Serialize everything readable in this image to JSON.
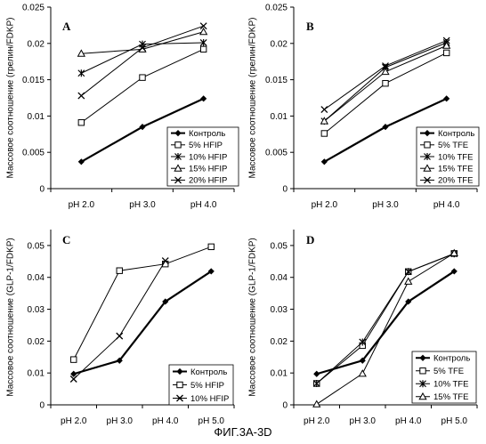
{
  "figure_caption": "ФИГ.3А-3D",
  "chart_data": [
    {
      "type": "line",
      "panel": "A",
      "ylabel": "Массовое соотношение (грелин/FDKP)",
      "categories": [
        "pH 2.0",
        "pH 3.0",
        "pH 4.0"
      ],
      "ylim": [
        0,
        0.025
      ],
      "yticks": [
        "0",
        "0.005",
        "0.01",
        "0.015",
        "0.02",
        "0.025"
      ],
      "grid": false,
      "legend_position": "bottom-right",
      "series": [
        {
          "name": "Контроль",
          "marker": "diamond",
          "values": [
            0.0037,
            0.0085,
            0.0124
          ]
        },
        {
          "name": "5% HFIP",
          "marker": "square",
          "values": [
            0.0091,
            0.0153,
            0.0192
          ]
        },
        {
          "name": "10% HFIP",
          "marker": "star",
          "values": [
            0.0159,
            0.0199,
            0.0201
          ]
        },
        {
          "name": "15% HFIP",
          "marker": "triangle",
          "values": [
            0.0186,
            0.0192,
            0.0216
          ]
        },
        {
          "name": "20% HFIP",
          "marker": "x",
          "values": [
            0.0128,
            0.0194,
            0.0224
          ]
        }
      ]
    },
    {
      "type": "line",
      "panel": "B",
      "ylabel": "Массовое соотношение (грелин/FDKP)",
      "categories": [
        "pH 2.0",
        "pH 3.0",
        "pH 4.0"
      ],
      "ylim": [
        0,
        0.025
      ],
      "yticks": [
        "0",
        "0.005",
        "0.01",
        "0.015",
        "0.02",
        "0.025"
      ],
      "grid": false,
      "legend_position": "bottom-right",
      "series": [
        {
          "name": "Контроль",
          "marker": "diamond",
          "values": [
            0.0037,
            0.0085,
            0.0124
          ]
        },
        {
          "name": "5% TFE",
          "marker": "square",
          "values": [
            0.0076,
            0.0145,
            0.0187
          ]
        },
        {
          "name": "10% TFE",
          "marker": "star",
          "values": [
            0.0093,
            0.0167,
            0.0201
          ]
        },
        {
          "name": "15% TFE",
          "marker": "triangle",
          "values": [
            0.0093,
            0.0161,
            0.0197
          ]
        },
        {
          "name": "20% TFE",
          "marker": "x",
          "values": [
            0.0109,
            0.0169,
            0.0204
          ]
        }
      ]
    },
    {
      "type": "line",
      "panel": "C",
      "ylabel": "Массовое соотношение (GLP-1/FDKP)",
      "categories": [
        "pH 2.0",
        "pH 3.0",
        "pH 4.0",
        "pH 5.0"
      ],
      "ylim": [
        0,
        0.055
      ],
      "yticks": [
        "0",
        "0.01",
        "0.02",
        "0.03",
        "0.04",
        "0.05"
      ],
      "grid": false,
      "legend_position": "bottom-right",
      "series": [
        {
          "name": "Контроль",
          "marker": "diamond",
          "values": [
            0.0097,
            0.0139,
            0.0324,
            0.0419
          ]
        },
        {
          "name": "5% HFIP",
          "marker": "square",
          "values": [
            0.0142,
            0.0421,
            0.0442,
            0.0496
          ]
        },
        {
          "name": "10% HFIP",
          "marker": "x",
          "values": [
            0.0081,
            0.0216,
            0.0452,
            null
          ]
        }
      ]
    },
    {
      "type": "line",
      "panel": "D",
      "ylabel": "Массовое соотношение (GLP-1/FDKP)",
      "categories": [
        "pH 2.0",
        "pH 3.0",
        "pH 4.0",
        "pH 5.0"
      ],
      "ylim": [
        0,
        0.055
      ],
      "yticks": [
        "0",
        "0.01",
        "0.02",
        "0.03",
        "0.04",
        "0.05"
      ],
      "grid": false,
      "legend_position": "bottom-right",
      "series": [
        {
          "name": "Контроль",
          "marker": "diamond",
          "values": [
            0.0097,
            0.0139,
            0.0324,
            0.0419
          ]
        },
        {
          "name": "5% TFE",
          "marker": "square",
          "values": [
            0.0067,
            0.0186,
            0.0418,
            0.0475
          ]
        },
        {
          "name": "10% TFE",
          "marker": "star",
          "values": [
            0.0067,
            0.0197,
            0.0418,
            0.0474
          ]
        },
        {
          "name": "15% TFE",
          "marker": "triangle",
          "values": [
            0.0002,
            0.0098,
            0.0387,
            0.0476
          ]
        }
      ]
    }
  ]
}
